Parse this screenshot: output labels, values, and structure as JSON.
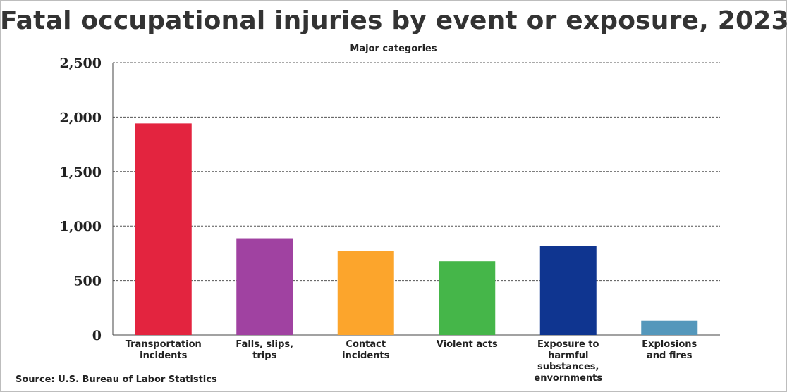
{
  "title": "Fatal occupational injuries by event or exposure, 2023",
  "subtitle": "Major categories",
  "source": "Source: U.S. Bureau of Labor Statistics",
  "chart_data": {
    "type": "bar",
    "title": "Fatal occupational injuries by event or exposure, 2023",
    "subtitle": "Major categories",
    "categories": [
      [
        "Transportation",
        "incidents"
      ],
      [
        "Falls, slips,",
        "trips"
      ],
      [
        "Contact",
        "incidents"
      ],
      [
        "Violent acts"
      ],
      [
        "Exposure to",
        "harmful",
        "substances,",
        "envornments"
      ],
      [
        "Explosions",
        "and fires"
      ]
    ],
    "values": [
      1942,
      888,
      772,
      677,
      820,
      131
    ],
    "colors": [
      "#e3243f",
      "#a042a1",
      "#fca52c",
      "#45b649",
      "#0f3590",
      "#5497bb"
    ],
    "ylim": [
      0,
      2500
    ],
    "yticks": [
      0,
      500,
      1000,
      1500,
      2000,
      2500
    ],
    "ytick_labels": [
      "0",
      "500",
      "1,000",
      "1,500",
      "2,000",
      "2,500"
    ],
    "grid": true,
    "xlabel": "",
    "ylabel": ""
  }
}
